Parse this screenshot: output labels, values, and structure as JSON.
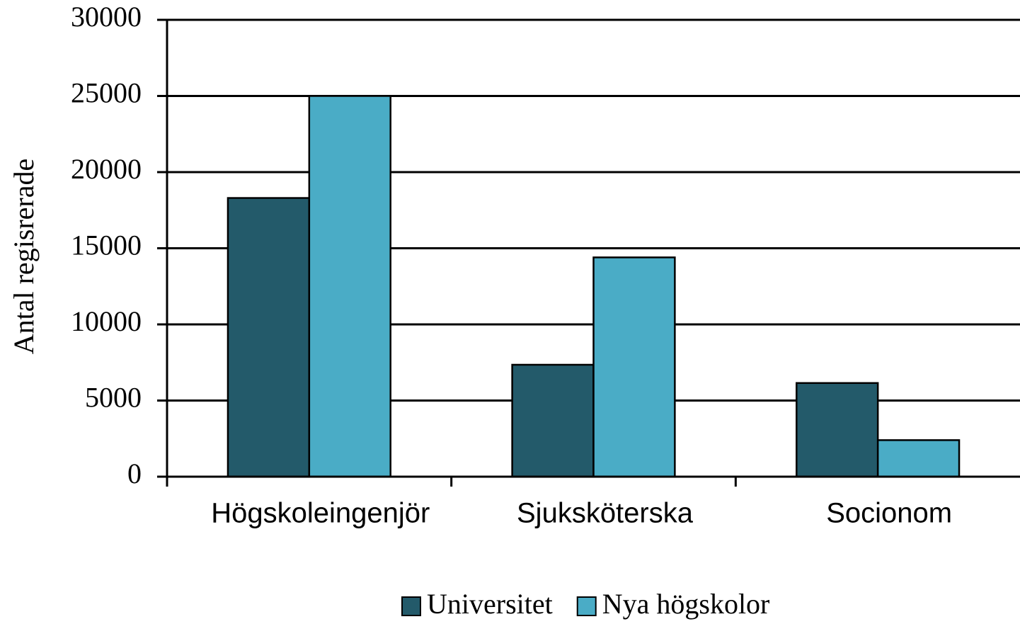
{
  "chart_data": {
    "type": "bar",
    "y_label": "Antal regisrerade",
    "categories": [
      "Högskoleingenjör",
      "Sjuksköterska",
      "Socionom"
    ],
    "series": [
      {
        "name": "Universitet",
        "color": "#235a6a",
        "values": [
          18300,
          7350,
          6150
        ]
      },
      {
        "name": "Nya högskolor",
        "color": "#4aacc6",
        "values": [
          25000,
          14400,
          2400
        ]
      }
    ],
    "ylim": [
      0,
      30000
    ],
    "yticks": [
      0,
      5000,
      10000,
      15000,
      20000,
      25000,
      30000
    ],
    "grid": true,
    "legend": "bottom"
  }
}
